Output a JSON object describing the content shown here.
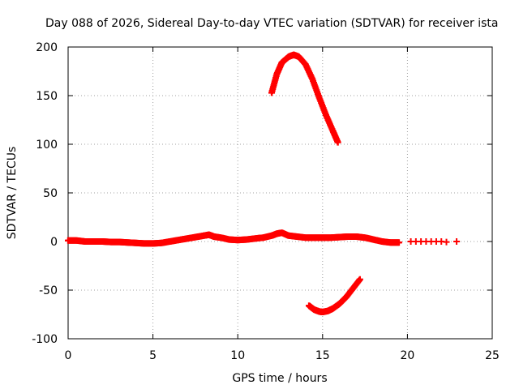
{
  "chart_data": {
    "type": "scatter",
    "title": "Day 088 of 2026, Sidereal Day-to-day VTEC variation (SDTVAR) for receiver ista",
    "xlabel": "GPS time / hours",
    "ylabel": "SDTVAR / TECUs",
    "xlim": [
      0,
      25
    ],
    "ylim": [
      -100,
      200
    ],
    "x_ticks": [
      0,
      5,
      10,
      15,
      20,
      25
    ],
    "y_ticks": [
      -100,
      -50,
      0,
      50,
      100,
      150,
      200
    ],
    "grid": true,
    "marker": "+",
    "series": [
      {
        "name": "main",
        "color": "#ff0000",
        "x": [
          0.0,
          0.5,
          1.0,
          1.5,
          2.0,
          2.5,
          3.0,
          3.5,
          4.0,
          4.5,
          5.0,
          5.5,
          6.0,
          6.5,
          7.0,
          7.5,
          8.0,
          8.3,
          8.6,
          9.0,
          9.5,
          10.0,
          10.5,
          11.0,
          11.5,
          12.0,
          12.3,
          12.6,
          13.0,
          13.5,
          14.0,
          14.5,
          15.0,
          15.5,
          16.0,
          16.5,
          17.0,
          17.5,
          18.0,
          18.5,
          19.0,
          19.5
        ],
        "y": [
          1,
          1,
          0,
          0,
          0,
          -0.5,
          -0.5,
          -1,
          -1.5,
          -2,
          -2,
          -1.5,
          0,
          1.5,
          3,
          4.5,
          6,
          7,
          5,
          4,
          2,
          1.5,
          2,
          3,
          4,
          6,
          8,
          9,
          6,
          5,
          4,
          4,
          4,
          4,
          4.5,
          5,
          5,
          4,
          2,
          0,
          -1,
          -1
        ]
      },
      {
        "name": "sparse-tail",
        "color": "#ff0000",
        "x": [
          20.2,
          20.5,
          20.8,
          21.1,
          21.4,
          21.7,
          22.0,
          22.3,
          22.9
        ],
        "y": [
          0,
          0,
          0,
          0,
          0,
          0,
          0,
          -0.5,
          0
        ]
      },
      {
        "name": "upper-arc",
        "color": "#ff0000",
        "x": [
          12.0,
          12.3,
          12.6,
          13.0,
          13.3,
          13.6,
          14.0,
          14.4,
          14.8,
          15.2,
          15.6,
          15.9
        ],
        "y": [
          153,
          172,
          184,
          190,
          192,
          190,
          182,
          167,
          148,
          130,
          114,
          102
        ]
      },
      {
        "name": "lower-arc",
        "color": "#ff0000",
        "x": [
          14.2,
          14.5,
          14.8,
          15.0,
          15.3,
          15.6,
          16.0,
          16.4,
          16.8,
          17.2
        ],
        "y": [
          -66,
          -70,
          -72,
          -72.5,
          -71.5,
          -69,
          -64,
          -57,
          -48,
          -39
        ]
      }
    ]
  }
}
